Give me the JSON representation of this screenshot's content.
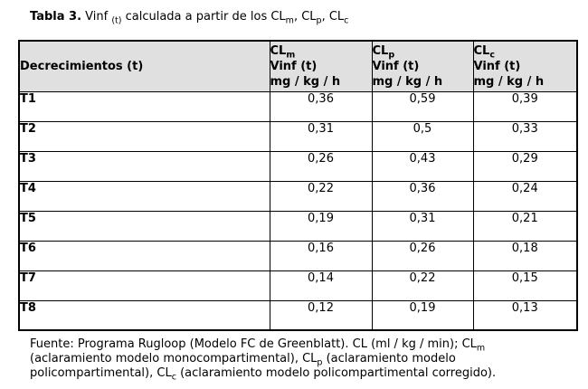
{
  "colors": {
    "page_bg": "#ffffff",
    "header_bg": "#e0e0e0",
    "border": "#000000",
    "text": "#000000"
  },
  "title": {
    "runs": [
      {
        "b": true,
        "t": "Tabla 3."
      },
      {
        "t": " Vinf "
      },
      {
        "sub": true,
        "t": "(t)"
      },
      {
        "t": " calculada a partir de los CL"
      },
      {
        "sub": true,
        "t": "m"
      },
      {
        "t": ", CL"
      },
      {
        "sub": true,
        "t": "p"
      },
      {
        "t": ", CL"
      },
      {
        "sub": true,
        "t": "c"
      }
    ]
  },
  "table": {
    "header": {
      "decrements": "Decrecimientos (t)",
      "cols": [
        {
          "cl": "CL",
          "sub": "m",
          "vinf": "Vinf (t)",
          "units": "mg / kg / h"
        },
        {
          "cl": "CL",
          "sub": "p",
          "vinf": "Vinf (t)",
          "units": "mg / kg / h"
        },
        {
          "cl": "CL",
          "sub": "c",
          "vinf": "Vinf (t)",
          "units": "mg / kg / h"
        }
      ]
    },
    "rows": [
      {
        "label": "T1",
        "values": [
          "0,36",
          "0,59",
          "0,39"
        ]
      },
      {
        "label": "T2",
        "values": [
          "0,31",
          "0,5",
          "0,33"
        ]
      },
      {
        "label": "T3",
        "values": [
          "0,26",
          "0,43",
          "0,29"
        ]
      },
      {
        "label": "T4",
        "values": [
          "0,22",
          "0,36",
          "0,24"
        ]
      },
      {
        "label": "T5",
        "values": [
          "0,19",
          "0,31",
          "0,21"
        ]
      },
      {
        "label": "T6",
        "values": [
          "0,16",
          "0,26",
          "0,18"
        ]
      },
      {
        "label": "T7",
        "values": [
          "0,14",
          "0,22",
          "0,15"
        ]
      },
      {
        "label": "T8",
        "values": [
          "0,12",
          "0,19",
          "0,13"
        ]
      }
    ]
  },
  "footer": {
    "lines": [
      [
        {
          "t": "Fuente: Programa Rugloop (Modelo FC de Greenblatt). CL (ml / kg / min); CL"
        },
        {
          "sub": true,
          "t": "m"
        }
      ],
      [
        {
          "t": "(aclaramiento modelo monocompartimental), CL"
        },
        {
          "sub": true,
          "t": "p"
        },
        {
          "t": " (aclaramiento modelo"
        }
      ],
      [
        {
          "t": "policompartimental), CL"
        },
        {
          "sub": true,
          "t": "c"
        },
        {
          "t": " (aclaramiento modelo policompartimental corregido)."
        }
      ]
    ]
  },
  "chart_data": {
    "type": "table",
    "title": "Tabla 3. Vinf (t) calculada a partir de los CLm, CLp, CLc",
    "columns": [
      "Decrecimientos (t)",
      "CLm Vinf (t) mg / kg / h",
      "CLp Vinf (t) mg / kg / h",
      "CLc Vinf (t) mg / kg / h"
    ],
    "rows": [
      [
        "T1",
        0.36,
        0.59,
        0.39
      ],
      [
        "T2",
        0.31,
        0.5,
        0.33
      ],
      [
        "T3",
        0.26,
        0.43,
        0.29
      ],
      [
        "T4",
        0.22,
        0.36,
        0.24
      ],
      [
        "T5",
        0.19,
        0.31,
        0.21
      ],
      [
        "T6",
        0.16,
        0.26,
        0.18
      ],
      [
        "T7",
        0.14,
        0.22,
        0.15
      ],
      [
        "T8",
        0.12,
        0.19,
        0.13
      ]
    ]
  }
}
